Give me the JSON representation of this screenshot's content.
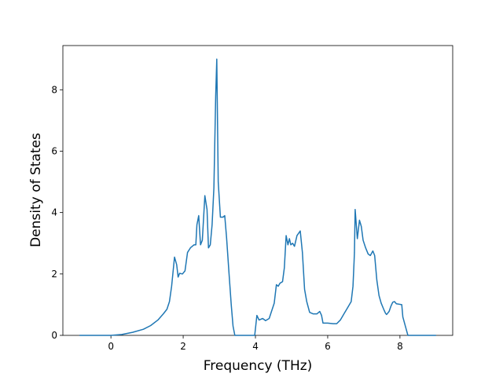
{
  "chart_data": {
    "type": "line",
    "xlabel": "Frequency (THz)",
    "ylabel": "Density of States",
    "xlim": [
      -1.33,
      9.46
    ],
    "ylim": [
      0,
      9.44
    ],
    "xticks": [
      0,
      2,
      4,
      6,
      8
    ],
    "yticks": [
      0,
      2,
      4,
      6,
      8
    ],
    "grid": false,
    "series": [
      {
        "color": "#1f77b4",
        "x": [
          -0.87,
          0,
          0.3,
          0.6,
          0.9,
          1.1,
          1.3,
          1.45,
          1.55,
          1.62,
          1.68,
          1.76,
          1.82,
          1.86,
          1.9,
          1.98,
          2.05,
          2.12,
          2.2,
          2.3,
          2.35,
          2.38,
          2.43,
          2.48,
          2.53,
          2.6,
          2.66,
          2.7,
          2.75,
          2.8,
          2.85,
          2.9,
          2.93,
          2.97,
          3.03,
          3.1,
          3.15,
          3.2,
          3.27,
          3.33,
          3.38,
          3.43,
          3.98,
          4.04,
          4.1,
          4.2,
          4.28,
          4.38,
          4.45,
          4.52,
          4.58,
          4.63,
          4.68,
          4.75,
          4.8,
          4.85,
          4.9,
          4.94,
          4.98,
          5.03,
          5.08,
          5.15,
          5.24,
          5.3,
          5.36,
          5.42,
          5.5,
          5.6,
          5.7,
          5.78,
          5.83,
          5.87,
          6.0,
          6.15,
          6.25,
          6.35,
          6.45,
          6.55,
          6.65,
          6.7,
          6.73,
          6.74,
          6.76,
          6.82,
          6.88,
          6.93,
          6.98,
          7.05,
          7.12,
          7.18,
          7.25,
          7.3,
          7.36,
          7.42,
          7.48,
          7.55,
          7.6,
          7.63,
          7.7,
          7.75,
          7.8,
          7.85,
          7.9,
          8.05,
          8.08,
          8.15,
          8.22,
          9.0
        ],
        "values": [
          0,
          0,
          0.03,
          0.1,
          0.2,
          0.32,
          0.5,
          0.7,
          0.85,
          1.1,
          1.6,
          2.55,
          2.3,
          1.9,
          2.02,
          2.0,
          2.1,
          2.7,
          2.85,
          2.95,
          2.95,
          3.6,
          3.9,
          2.95,
          3.1,
          4.55,
          4.1,
          2.85,
          2.95,
          3.6,
          4.8,
          7.8,
          9.0,
          5.0,
          3.85,
          3.85,
          3.9,
          3.2,
          2.0,
          1.0,
          0.3,
          0,
          0,
          0.65,
          0.5,
          0.55,
          0.48,
          0.55,
          0.8,
          1.05,
          1.65,
          1.6,
          1.7,
          1.75,
          2.2,
          3.25,
          2.95,
          3.15,
          2.95,
          3.0,
          2.9,
          3.25,
          3.4,
          2.7,
          1.5,
          1.1,
          0.75,
          0.7,
          0.7,
          0.78,
          0.65,
          0.4,
          0.4,
          0.38,
          0.38,
          0.5,
          0.7,
          0.9,
          1.1,
          1.6,
          2.4,
          2.7,
          4.1,
          3.15,
          3.75,
          3.55,
          3.1,
          2.85,
          2.65,
          2.6,
          2.75,
          2.6,
          1.8,
          1.3,
          1.05,
          0.85,
          0.72,
          0.68,
          0.78,
          0.95,
          1.08,
          1.1,
          1.03,
          1.0,
          0.6,
          0.3,
          0,
          0
        ]
      }
    ]
  }
}
